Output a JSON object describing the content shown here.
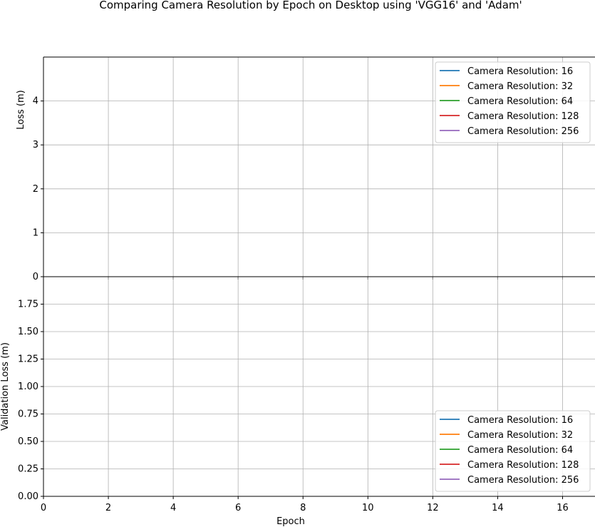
{
  "chart_data": {
    "title": "Comparing Camera Resolution by Epoch on Desktop using 'VGG16' and 'Adam'",
    "colors": [
      "#1f77b4",
      "#ff7f0e",
      "#2ca02c",
      "#d62728",
      "#9467bd"
    ],
    "panels": [
      {
        "type": "line",
        "xlabel": "",
        "ylabel": "Loss (m)",
        "xlim": [
          0,
          17
        ],
        "ylim": [
          0,
          5
        ],
        "grid": true,
        "legend_position": "top-right",
        "xticks": [
          0,
          2,
          4,
          6,
          8,
          10,
          12,
          14,
          16
        ],
        "xtick_labels_shown": false,
        "yticks": [
          0,
          1,
          2,
          3,
          4
        ],
        "ytick_labels": [
          "0",
          "1",
          "2",
          "3",
          "4"
        ],
        "series": [
          {
            "name": "Camera Resolution: 16",
            "x": [],
            "y": []
          },
          {
            "name": "Camera Resolution: 32",
            "x": [],
            "y": []
          },
          {
            "name": "Camera Resolution: 64",
            "x": [],
            "y": []
          },
          {
            "name": "Camera Resolution: 128",
            "x": [],
            "y": []
          },
          {
            "name": "Camera Resolution: 256",
            "x": [],
            "y": []
          }
        ]
      },
      {
        "type": "line",
        "xlabel": "Epoch",
        "ylabel": "Validation Loss (m)",
        "xlim": [
          0,
          17
        ],
        "ylim": [
          0,
          2
        ],
        "grid": true,
        "legend_position": "bottom-right",
        "xticks": [
          0,
          2,
          4,
          6,
          8,
          10,
          12,
          14,
          16
        ],
        "xtick_labels_shown": true,
        "xtick_labels": [
          "0",
          "2",
          "4",
          "6",
          "8",
          "10",
          "12",
          "14",
          "16"
        ],
        "yticks": [
          0,
          0.25,
          0.5,
          0.75,
          1.0,
          1.25,
          1.5,
          1.75
        ],
        "ytick_labels": [
          "0.00",
          "0.25",
          "0.50",
          "0.75",
          "1.00",
          "1.25",
          "1.50",
          "1.75"
        ],
        "series": [
          {
            "name": "Camera Resolution: 16",
            "x": [],
            "y": []
          },
          {
            "name": "Camera Resolution: 32",
            "x": [],
            "y": []
          },
          {
            "name": "Camera Resolution: 64",
            "x": [],
            "y": []
          },
          {
            "name": "Camera Resolution: 128",
            "x": [],
            "y": []
          },
          {
            "name": "Camera Resolution: 256",
            "x": [],
            "y": []
          }
        ]
      }
    ]
  }
}
